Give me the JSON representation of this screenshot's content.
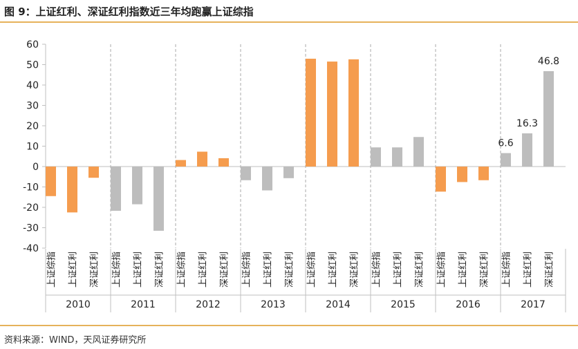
{
  "title": "图 9：上证红利、深证红利指数近三年均跑赢上证综指",
  "source": "资料来源：WIND，天风证券研究所",
  "colors": {
    "highlight": "#F59C4E",
    "normal": "#BDBDBD",
    "accent_rule": "#E6B25A"
  },
  "chart_data": {
    "type": "bar",
    "title": "图 9：上证红利、深证红利指数近三年均跑赢上证综指",
    "xlabel": "",
    "ylabel": "",
    "ylim": [
      -40,
      60
    ],
    "yticks": [
      "60",
      "50",
      "40",
      "30",
      "20",
      "10",
      "0",
      "-10",
      "-20",
      "-30",
      "-40"
    ],
    "series_names": [
      "上证综指",
      "上证红利",
      "深证红利"
    ],
    "groups": [
      {
        "year": "2010",
        "highlight": true,
        "values": [
          -14.5,
          -22.5,
          -5.5
        ]
      },
      {
        "year": "2011",
        "highlight": false,
        "values": [
          -21.7,
          -18.5,
          -31.5
        ]
      },
      {
        "year": "2012",
        "highlight": true,
        "values": [
          3.2,
          7.3,
          4.1
        ]
      },
      {
        "year": "2013",
        "highlight": false,
        "values": [
          -6.7,
          -11.7,
          -5.7
        ]
      },
      {
        "year": "2014",
        "highlight": true,
        "values": [
          52.9,
          51.5,
          52.6
        ]
      },
      {
        "year": "2015",
        "highlight": false,
        "values": [
          9.4,
          9.4,
          14.5
        ]
      },
      {
        "year": "2016",
        "highlight": true,
        "values": [
          -12.3,
          -7.6,
          -6.7
        ]
      },
      {
        "year": "2017",
        "highlight": false,
        "values": [
          6.6,
          16.3,
          46.8
        ]
      }
    ],
    "data_labels": [
      {
        "group": 7,
        "bar": 0,
        "text": "6.6"
      },
      {
        "group": 7,
        "bar": 1,
        "text": "16.3"
      },
      {
        "group": 7,
        "bar": 2,
        "text": "46.8"
      }
    ]
  }
}
